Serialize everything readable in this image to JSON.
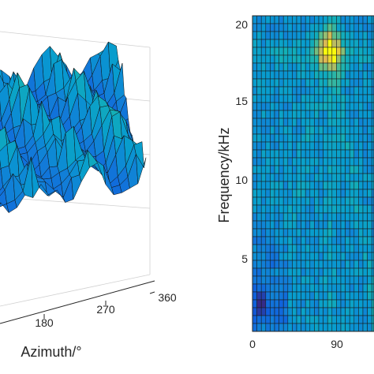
{
  "chart_data": [
    {
      "type": "surface",
      "panel": "left",
      "xlabel": "Azimuth/°",
      "x_ticks": [
        "180",
        "270",
        "360"
      ],
      "colormap": "parula",
      "edge_color": "#000000"
    },
    {
      "type": "heatmap",
      "panel": "right",
      "ylabel": "Frequency/kHz",
      "y_ticks": [
        "5",
        "10",
        "15",
        "20"
      ],
      "x_ticks": [
        "0",
        "90"
      ],
      "ylim": [
        0,
        20
      ],
      "xlim_visible": [
        0,
        135
      ],
      "grid": true,
      "colormap": "parula",
      "rows": 40,
      "cols_visible": 28,
      "features": {
        "hot_spot": {
          "azimuth": 88,
          "frequency_khz": 17.8
        },
        "cool_spot": {
          "azimuth": 10,
          "frequency_khz": 1.6
        }
      }
    }
  ]
}
